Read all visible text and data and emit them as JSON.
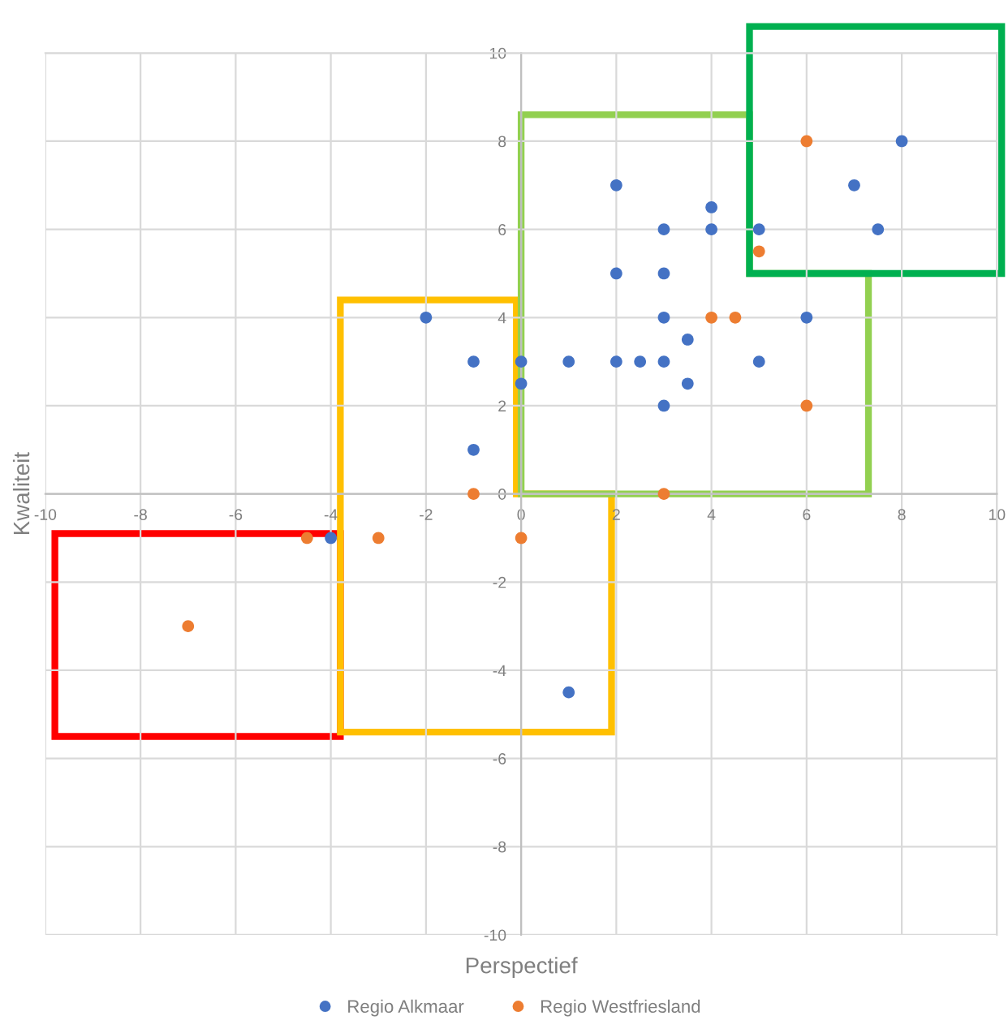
{
  "chart_data": {
    "type": "scatter",
    "xlabel": "Perspectief",
    "ylabel": "Kwaliteit",
    "xlim": [
      -10,
      10
    ],
    "ylim": [
      -10,
      10
    ],
    "xticks": [
      -10,
      -8,
      -6,
      -4,
      -2,
      0,
      2,
      4,
      6,
      8,
      10
    ],
    "yticks": [
      -10,
      -8,
      -6,
      -4,
      -2,
      0,
      2,
      4,
      6,
      8,
      10
    ],
    "grid": true,
    "legend": "bottom",
    "marker": "circle",
    "series": [
      {
        "name": "Regio Alkmaar",
        "color": "#4472c4",
        "x": [
          -2,
          -1,
          -1,
          0,
          0,
          1,
          2,
          2,
          2,
          2.5,
          3,
          3,
          3,
          3,
          3,
          3.5,
          3.5,
          4,
          4,
          5,
          5,
          6,
          7,
          7.5,
          8,
          1,
          -4
        ],
        "values": [
          4,
          3,
          1,
          3,
          2.5,
          3,
          7,
          5,
          3,
          3,
          6,
          5,
          4,
          3,
          2,
          3.5,
          2.5,
          6.5,
          6,
          6,
          3,
          4,
          7,
          6,
          8,
          -4.5,
          -1
        ]
      },
      {
        "name": "Regio Westfriesland",
        "color": "#ed7d31",
        "x": [
          6,
          5,
          4,
          4.5,
          6,
          3,
          -1,
          0,
          -3,
          -4.5,
          -7
        ],
        "values": [
          8,
          5.5,
          4,
          4,
          2,
          0,
          0,
          -1,
          -1,
          -1,
          -3
        ]
      }
    ]
  }
}
